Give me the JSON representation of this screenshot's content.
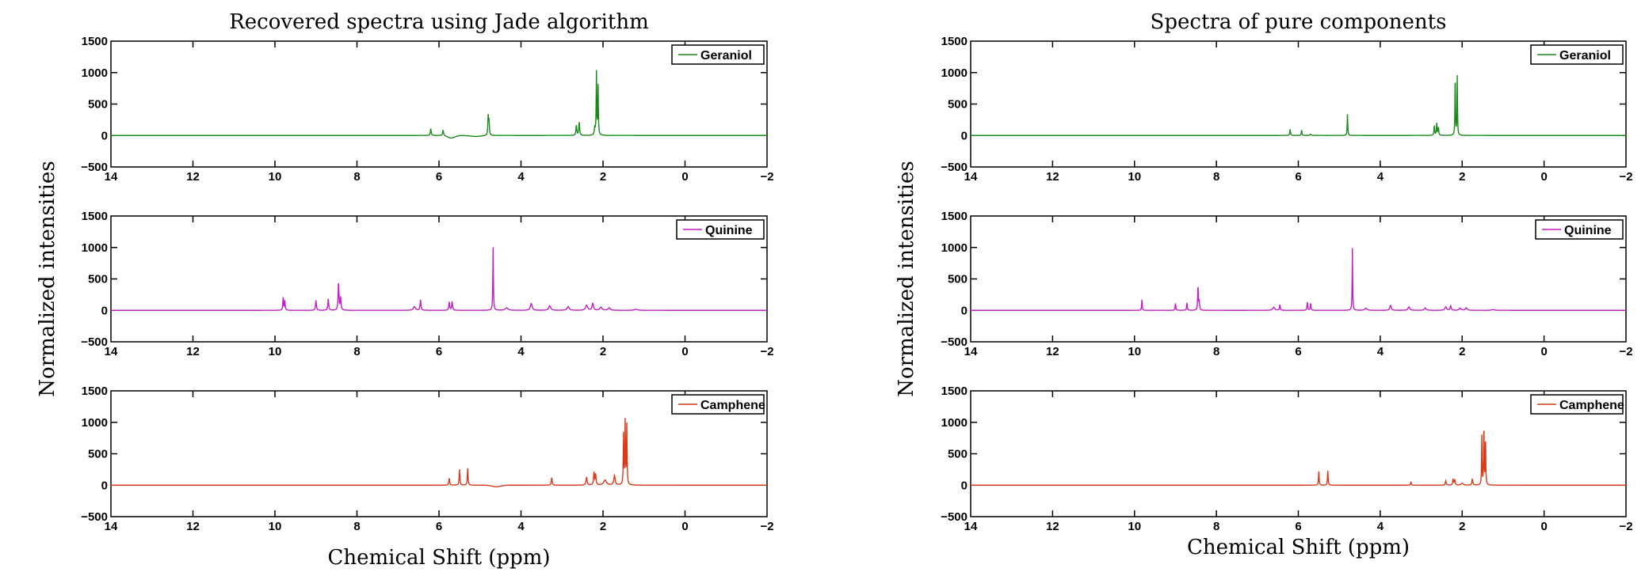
{
  "chart_data": [
    {
      "type": "line",
      "title": "Recovered spectra using Jade algorithm",
      "xlabel": "Chemical Shift (ppm)",
      "ylabel": "Normalized intensities",
      "xlim": [
        14,
        -2
      ],
      "ylim": [
        -500,
        1500
      ],
      "x_ticks": [
        "14",
        "12",
        "10",
        "8",
        "6",
        "4",
        "2",
        "0",
        "−2"
      ],
      "y_ticks": [
        "1500",
        "1000",
        "500",
        "0",
        "−500"
      ],
      "grid": false,
      "subplots": [
        {
          "name": "Geraniol",
          "color": "#1a8a1a",
          "legend_position": "top-right",
          "baseline_dips": [
            {
              "x": 5.7,
              "y": -40,
              "w": 0.12
            },
            {
              "x": 5.1,
              "y": -15,
              "w": 0.2
            }
          ],
          "peaks": [
            {
              "x": 6.2,
              "y": 110,
              "w": 0.012
            },
            {
              "x": 5.9,
              "y": 90,
              "w": 0.012
            },
            {
              "x": 4.8,
              "y": 300,
              "w": 0.01
            },
            {
              "x": 4.78,
              "y": 220,
              "w": 0.01
            },
            {
              "x": 2.65,
              "y": 160,
              "w": 0.012
            },
            {
              "x": 2.58,
              "y": 210,
              "w": 0.012
            },
            {
              "x": 2.2,
              "y": 120,
              "w": 0.012
            },
            {
              "x": 2.16,
              "y": 1000,
              "w": 0.008
            },
            {
              "x": 2.12,
              "y": 780,
              "w": 0.008
            }
          ]
        },
        {
          "name": "Quinine",
          "color": "#c21fc2",
          "legend_position": "top-right",
          "baseline_dips": [],
          "peaks": [
            {
              "x": 9.8,
              "y": 200,
              "w": 0.01
            },
            {
              "x": 9.76,
              "y": 150,
              "w": 0.01
            },
            {
              "x": 9.0,
              "y": 160,
              "w": 0.012
            },
            {
              "x": 8.7,
              "y": 180,
              "w": 0.012
            },
            {
              "x": 8.45,
              "y": 440,
              "w": 0.012
            },
            {
              "x": 8.4,
              "y": 200,
              "w": 0.012
            },
            {
              "x": 6.6,
              "y": 60,
              "w": 0.03
            },
            {
              "x": 6.45,
              "y": 170,
              "w": 0.012
            },
            {
              "x": 5.75,
              "y": 130,
              "w": 0.012
            },
            {
              "x": 5.68,
              "y": 140,
              "w": 0.012
            },
            {
              "x": 4.68,
              "y": 1000,
              "w": 0.008
            },
            {
              "x": 4.35,
              "y": 40,
              "w": 0.04
            },
            {
              "x": 3.75,
              "y": 110,
              "w": 0.025
            },
            {
              "x": 3.3,
              "y": 70,
              "w": 0.03
            },
            {
              "x": 2.85,
              "y": 60,
              "w": 0.03
            },
            {
              "x": 2.4,
              "y": 80,
              "w": 0.03
            },
            {
              "x": 2.25,
              "y": 110,
              "w": 0.02
            },
            {
              "x": 2.05,
              "y": 50,
              "w": 0.03
            },
            {
              "x": 1.85,
              "y": 40,
              "w": 0.03
            },
            {
              "x": 1.2,
              "y": 15,
              "w": 0.05
            }
          ]
        },
        {
          "name": "Camphene",
          "color": "#d83a1a",
          "legend_position": "top-right",
          "baseline_dips": [
            {
              "x": 4.6,
              "y": -25,
              "w": 0.15
            }
          ],
          "peaks": [
            {
              "x": 5.75,
              "y": 110,
              "w": 0.012
            },
            {
              "x": 5.5,
              "y": 250,
              "w": 0.01
            },
            {
              "x": 5.3,
              "y": 270,
              "w": 0.01
            },
            {
              "x": 3.25,
              "y": 120,
              "w": 0.012
            },
            {
              "x": 2.4,
              "y": 130,
              "w": 0.015
            },
            {
              "x": 2.22,
              "y": 200,
              "w": 0.012
            },
            {
              "x": 2.18,
              "y": 170,
              "w": 0.012
            },
            {
              "x": 1.95,
              "y": 80,
              "w": 0.04
            },
            {
              "x": 1.72,
              "y": 150,
              "w": 0.02
            },
            {
              "x": 1.5,
              "y": 800,
              "w": 0.008
            },
            {
              "x": 1.46,
              "y": 1000,
              "w": 0.008
            },
            {
              "x": 1.42,
              "y": 950,
              "w": 0.008
            }
          ]
        }
      ]
    },
    {
      "type": "line",
      "title": "Spectra of pure components",
      "xlabel": "Chemical Shift (ppm)",
      "ylabel": "Normalized intensities",
      "xlim": [
        14,
        -2
      ],
      "ylim": [
        -500,
        1500
      ],
      "x_ticks": [
        "14",
        "12",
        "10",
        "8",
        "6",
        "4",
        "2",
        "0",
        "−2"
      ],
      "y_ticks": [
        "1500",
        "1000",
        "500",
        "0",
        "−500"
      ],
      "grid": false,
      "subplots": [
        {
          "name": "Geraniol",
          "color": "#1a8a1a",
          "legend_position": "top-right",
          "baseline_dips": [],
          "peaks": [
            {
              "x": 6.2,
              "y": 100,
              "w": 0.01
            },
            {
              "x": 5.92,
              "y": 85,
              "w": 0.01
            },
            {
              "x": 5.7,
              "y": 20,
              "w": 0.02
            },
            {
              "x": 4.8,
              "y": 340,
              "w": 0.008
            },
            {
              "x": 2.68,
              "y": 150,
              "w": 0.01
            },
            {
              "x": 2.62,
              "y": 190,
              "w": 0.01
            },
            {
              "x": 2.58,
              "y": 120,
              "w": 0.01
            },
            {
              "x": 2.17,
              "y": 990,
              "w": 0.007
            },
            {
              "x": 2.12,
              "y": 940,
              "w": 0.007
            }
          ]
        },
        {
          "name": "Quinine",
          "color": "#c21fc2",
          "legend_position": "top-right",
          "baseline_dips": [],
          "peaks": [
            {
              "x": 9.82,
              "y": 170,
              "w": 0.008
            },
            {
              "x": 9.0,
              "y": 110,
              "w": 0.01
            },
            {
              "x": 8.72,
              "y": 120,
              "w": 0.01
            },
            {
              "x": 8.45,
              "y": 390,
              "w": 0.009
            },
            {
              "x": 8.42,
              "y": 150,
              "w": 0.009
            },
            {
              "x": 6.6,
              "y": 50,
              "w": 0.03
            },
            {
              "x": 6.45,
              "y": 90,
              "w": 0.01
            },
            {
              "x": 5.78,
              "y": 130,
              "w": 0.01
            },
            {
              "x": 5.7,
              "y": 110,
              "w": 0.01
            },
            {
              "x": 4.68,
              "y": 990,
              "w": 0.007
            },
            {
              "x": 4.35,
              "y": 35,
              "w": 0.03
            },
            {
              "x": 3.75,
              "y": 80,
              "w": 0.02
            },
            {
              "x": 3.3,
              "y": 55,
              "w": 0.025
            },
            {
              "x": 2.9,
              "y": 40,
              "w": 0.025
            },
            {
              "x": 2.4,
              "y": 55,
              "w": 0.025
            },
            {
              "x": 2.28,
              "y": 70,
              "w": 0.015
            },
            {
              "x": 2.05,
              "y": 35,
              "w": 0.025
            },
            {
              "x": 1.9,
              "y": 40,
              "w": 0.025
            },
            {
              "x": 1.25,
              "y": 12,
              "w": 0.04
            }
          ]
        },
        {
          "name": "Camphene",
          "color": "#d83a1a",
          "legend_position": "top-right",
          "baseline_dips": [],
          "peaks": [
            {
              "x": 5.5,
              "y": 220,
              "w": 0.009
            },
            {
              "x": 5.28,
              "y": 230,
              "w": 0.009
            },
            {
              "x": 3.25,
              "y": 55,
              "w": 0.01
            },
            {
              "x": 2.4,
              "y": 70,
              "w": 0.012
            },
            {
              "x": 2.22,
              "y": 95,
              "w": 0.012
            },
            {
              "x": 2.18,
              "y": 85,
              "w": 0.012
            },
            {
              "x": 2.0,
              "y": 30,
              "w": 0.03
            },
            {
              "x": 1.75,
              "y": 100,
              "w": 0.012
            },
            {
              "x": 1.52,
              "y": 780,
              "w": 0.007
            },
            {
              "x": 1.47,
              "y": 1000,
              "w": 0.007
            },
            {
              "x": 1.43,
              "y": 800,
              "w": 0.007
            }
          ]
        }
      ]
    }
  ]
}
